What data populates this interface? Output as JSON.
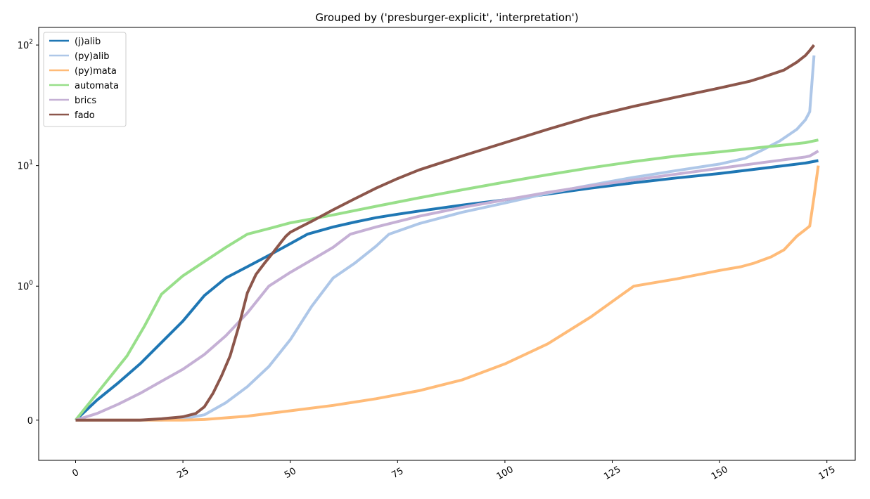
{
  "chart_data": {
    "type": "line",
    "title": "Grouped by ('presburger-explicit', 'interpretation')",
    "xlabel": "",
    "ylabel": "",
    "xlim": [
      -8.6,
      181.6
    ],
    "y_scale": "symlog",
    "y_linthresh": 1,
    "ylim": [
      -0.3,
      140
    ],
    "x_ticks": [
      0,
      25,
      50,
      75,
      100,
      125,
      150,
      175
    ],
    "x_tick_labels": [
      "0",
      "25",
      "50",
      "75",
      "100",
      "125",
      "150",
      "175"
    ],
    "y_ticks": [
      0,
      1,
      10,
      100
    ],
    "y_tick_labels": [
      {
        "base": "0",
        "exp": ""
      },
      {
        "base": "10",
        "exp": "0"
      },
      {
        "base": "10",
        "exp": "1"
      },
      {
        "base": "10",
        "exp": "2"
      }
    ],
    "grid": false,
    "legend_position": "top-left",
    "series": [
      {
        "name": "(j)alib",
        "color": "#1f77b4",
        "points": [
          [
            0,
            0
          ],
          [
            5,
            0.15
          ],
          [
            10,
            0.28
          ],
          [
            15,
            0.42
          ],
          [
            20,
            0.58
          ],
          [
            25,
            0.74
          ],
          [
            30,
            0.93
          ],
          [
            35,
            1.17
          ],
          [
            40,
            1.45
          ],
          [
            45,
            1.8
          ],
          [
            50,
            2.25
          ],
          [
            54,
            2.7
          ],
          [
            60,
            3.1
          ],
          [
            65,
            3.4
          ],
          [
            70,
            3.7
          ],
          [
            75,
            3.95
          ],
          [
            80,
            4.2
          ],
          [
            90,
            4.7
          ],
          [
            100,
            5.2
          ],
          [
            110,
            5.8
          ],
          [
            120,
            6.5
          ],
          [
            130,
            7.2
          ],
          [
            140,
            7.9
          ],
          [
            150,
            8.6
          ],
          [
            160,
            9.5
          ],
          [
            170,
            10.5
          ],
          [
            173,
            11
          ]
        ]
      },
      {
        "name": "(py)alib",
        "color": "#aec7e8",
        "points": [
          [
            0,
            0
          ],
          [
            10,
            0
          ],
          [
            20,
            0
          ],
          [
            25,
            0.01
          ],
          [
            30,
            0.04
          ],
          [
            35,
            0.13
          ],
          [
            40,
            0.25
          ],
          [
            45,
            0.4
          ],
          [
            50,
            0.6
          ],
          [
            55,
            0.85
          ],
          [
            60,
            1.17
          ],
          [
            65,
            1.55
          ],
          [
            70,
            2.15
          ],
          [
            73,
            2.7
          ],
          [
            80,
            3.3
          ],
          [
            90,
            4.1
          ],
          [
            100,
            4.9
          ],
          [
            110,
            5.9
          ],
          [
            120,
            6.9
          ],
          [
            130,
            8.0
          ],
          [
            140,
            9.1
          ],
          [
            150,
            10.3
          ],
          [
            156,
            11.5
          ],
          [
            160,
            13.5
          ],
          [
            164,
            16
          ],
          [
            168,
            20
          ],
          [
            170,
            24
          ],
          [
            171,
            28
          ],
          [
            172,
            82
          ]
        ]
      },
      {
        "name": "(py)mata",
        "color": "#ffbb78",
        "points": [
          [
            0,
            0
          ],
          [
            20,
            0
          ],
          [
            25,
            0
          ],
          [
            30,
            0.005
          ],
          [
            40,
            0.03
          ],
          [
            50,
            0.07
          ],
          [
            60,
            0.11
          ],
          [
            70,
            0.16
          ],
          [
            80,
            0.22
          ],
          [
            90,
            0.3
          ],
          [
            100,
            0.42
          ],
          [
            110,
            0.57
          ],
          [
            120,
            0.77
          ],
          [
            130,
            1.0
          ],
          [
            140,
            1.15
          ],
          [
            150,
            1.35
          ],
          [
            155,
            1.45
          ],
          [
            158,
            1.55
          ],
          [
            162,
            1.75
          ],
          [
            165,
            2.0
          ],
          [
            168,
            2.6
          ],
          [
            170,
            2.95
          ],
          [
            171,
            3.15
          ],
          [
            172,
            5.5
          ],
          [
            173,
            10
          ]
        ]
      },
      {
        "name": "automata",
        "color": "#98df8a",
        "points": [
          [
            0,
            0
          ],
          [
            4,
            0.16
          ],
          [
            8,
            0.32
          ],
          [
            12,
            0.48
          ],
          [
            16,
            0.7
          ],
          [
            20,
            0.94
          ],
          [
            25,
            1.22
          ],
          [
            30,
            1.6
          ],
          [
            35,
            2.1
          ],
          [
            40,
            2.7
          ],
          [
            45,
            3.0
          ],
          [
            50,
            3.35
          ],
          [
            60,
            3.9
          ],
          [
            70,
            4.6
          ],
          [
            80,
            5.4
          ],
          [
            90,
            6.3
          ],
          [
            100,
            7.3
          ],
          [
            110,
            8.4
          ],
          [
            120,
            9.6
          ],
          [
            130,
            10.8
          ],
          [
            140,
            12.0
          ],
          [
            150,
            13.0
          ],
          [
            160,
            14.2
          ],
          [
            165,
            14.8
          ],
          [
            170,
            15.5
          ],
          [
            173,
            16.3
          ]
        ]
      },
      {
        "name": "brics",
        "color": "#c5b0d5",
        "points": [
          [
            0,
            0
          ],
          [
            5,
            0.05
          ],
          [
            10,
            0.12
          ],
          [
            15,
            0.2
          ],
          [
            20,
            0.29
          ],
          [
            25,
            0.38
          ],
          [
            30,
            0.49
          ],
          [
            35,
            0.63
          ],
          [
            40,
            0.8
          ],
          [
            45,
            1.0
          ],
          [
            50,
            1.3
          ],
          [
            55,
            1.65
          ],
          [
            60,
            2.1
          ],
          [
            64,
            2.7
          ],
          [
            70,
            3.1
          ],
          [
            80,
            3.8
          ],
          [
            90,
            4.5
          ],
          [
            100,
            5.2
          ],
          [
            110,
            6.0
          ],
          [
            120,
            6.8
          ],
          [
            130,
            7.6
          ],
          [
            140,
            8.5
          ],
          [
            150,
            9.5
          ],
          [
            160,
            10.6
          ],
          [
            170,
            11.8
          ],
          [
            171,
            12
          ],
          [
            173,
            13.2
          ]
        ]
      },
      {
        "name": "fado",
        "color": "#8c564b",
        "points": [
          [
            0,
            0
          ],
          [
            10,
            0
          ],
          [
            15,
            0
          ],
          [
            20,
            0.01
          ],
          [
            25,
            0.025
          ],
          [
            28,
            0.05
          ],
          [
            30,
            0.1
          ],
          [
            32,
            0.2
          ],
          [
            34,
            0.33
          ],
          [
            36,
            0.48
          ],
          [
            38,
            0.7
          ],
          [
            40,
            0.95
          ],
          [
            42,
            1.25
          ],
          [
            44,
            1.55
          ],
          [
            46,
            1.9
          ],
          [
            48,
            2.35
          ],
          [
            49,
            2.6
          ],
          [
            50,
            2.8
          ],
          [
            52,
            3.05
          ],
          [
            55,
            3.45
          ],
          [
            60,
            4.3
          ],
          [
            65,
            5.3
          ],
          [
            70,
            6.5
          ],
          [
            75,
            7.8
          ],
          [
            80,
            9.2
          ],
          [
            90,
            12
          ],
          [
            100,
            15.5
          ],
          [
            110,
            20
          ],
          [
            120,
            25.5
          ],
          [
            130,
            31
          ],
          [
            140,
            37
          ],
          [
            150,
            44
          ],
          [
            157,
            50
          ],
          [
            160,
            54
          ],
          [
            165,
            62
          ],
          [
            168,
            72
          ],
          [
            170,
            82
          ],
          [
            171,
            90
          ],
          [
            172,
            100
          ]
        ]
      }
    ]
  }
}
